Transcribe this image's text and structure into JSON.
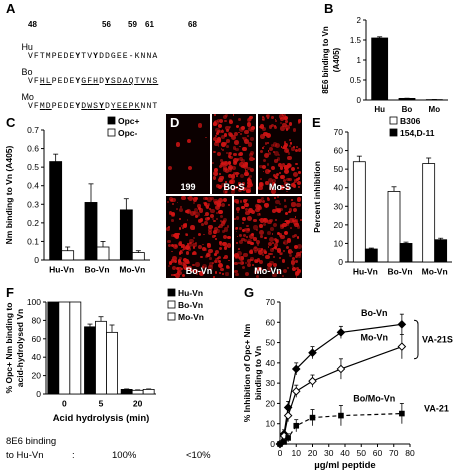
{
  "panels": {
    "A": {
      "label": "A",
      "positions": [
        "48",
        "56",
        "59",
        "61",
        "68"
      ],
      "rows": [
        {
          "species": "Hu",
          "seq": "VFTMPEDEYTVYDDGEE-KNNA",
          "underlined": [],
          "bold": [
            8,
            11
          ]
        },
        {
          "species": "Bo",
          "seq": "VFHLPEDEYGFHDYSDAQTVNS",
          "underlined": [
            2,
            3,
            9,
            10,
            11,
            13,
            14,
            15,
            16,
            17,
            18,
            19,
            20,
            21
          ],
          "bold": [
            8,
            13
          ]
        },
        {
          "species": "Mo",
          "seq": "VFMDPEDEYDWSYDYEEPKNNT",
          "underlined": [
            2,
            3,
            9,
            10,
            11,
            12,
            14,
            15,
            16,
            17,
            18
          ],
          "bold": [
            8,
            12
          ]
        }
      ]
    },
    "B": {
      "label": "B"
    },
    "C": {
      "label": "C"
    },
    "D": {
      "label": "D",
      "images": [
        {
          "label": "199",
          "density": 0.02
        },
        {
          "label": "Bo-S",
          "density": 0.55
        },
        {
          "label": "Mo-S",
          "density": 0.45
        },
        {
          "label": "Bo-Vn",
          "density": 0.5
        },
        {
          "label": "Mo-Vn",
          "density": 0.5
        }
      ]
    },
    "E": {
      "label": "E"
    },
    "F": {
      "label": "F",
      "footer_label_line1": "8E6 binding",
      "footer_label_line2": "to Hu-Vn",
      "footer_colon": ":",
      "footer_values": [
        "100%",
        "<10%"
      ]
    },
    "G": {
      "label": "G"
    }
  },
  "chart_data": [
    {
      "panel": "B",
      "type": "bar",
      "categories": [
        "Hu",
        "Bo",
        "Mo"
      ],
      "values": [
        1.55,
        0.04,
        0.01
      ],
      "errors": [
        0.03,
        0.005,
        0.003
      ],
      "ylabel": "8E6 binding to Vn (A405)",
      "ylim": [
        0,
        2
      ],
      "yticks": [
        "0",
        "0.5",
        "1",
        "1.5",
        "2"
      ],
      "colors": {
        "bar": "#000000"
      }
    },
    {
      "panel": "C",
      "type": "bar",
      "categories": [
        "Hu-Vn",
        "Bo-Vn",
        "Mo-Vn"
      ],
      "series": [
        {
          "name": "Opc+",
          "values": [
            0.53,
            0.31,
            0.27
          ],
          "errors": [
            0.04,
            0.1,
            0.06
          ],
          "fill": "#000000"
        },
        {
          "name": "Opc-",
          "values": [
            0.05,
            0.07,
            0.04
          ],
          "errors": [
            0.02,
            0.03,
            0.01
          ],
          "fill": "#ffffff"
        }
      ],
      "ylabel": "Nm binding to Vn (A405)",
      "ylim": [
        0,
        0.7
      ],
      "yticks": [
        "0",
        "0.1",
        "0.2",
        "0.3",
        "0.4",
        "0.5",
        "0.6",
        "0.7"
      ],
      "legend": "top-right"
    },
    {
      "panel": "E",
      "type": "bar",
      "categories": [
        "Hu-Vn",
        "Bo-Vn",
        "Mo-Vn"
      ],
      "series": [
        {
          "name": "B306",
          "values": [
            54,
            38,
            53
          ],
          "errors": [
            3,
            2.5,
            3
          ],
          "fill": "#ffffff"
        },
        {
          "name": "154,D-11",
          "values": [
            7,
            10,
            12
          ],
          "errors": [
            0.5,
            0.7,
            0.8
          ],
          "fill": "#000000"
        }
      ],
      "ylabel": "Percent inhibition",
      "ylim": [
        0,
        70
      ],
      "yticks": [
        "0",
        "10",
        "20",
        "30",
        "40",
        "50",
        "60",
        "70"
      ],
      "legend": "top-right"
    },
    {
      "panel": "F",
      "type": "bar",
      "categories": [
        "0",
        "5",
        "20"
      ],
      "series": [
        {
          "name": "Hu-Vn",
          "values": [
            100,
            73,
            5
          ],
          "errors": [
            0,
            3,
            0.5
          ],
          "fill": "#000000"
        },
        {
          "name": "Bo-Vn",
          "values": [
            100,
            79,
            4
          ],
          "errors": [
            0,
            5,
            0.5
          ],
          "fill": "#ffffff"
        },
        {
          "name": "Mo-Vn",
          "values": [
            100,
            67,
            5
          ],
          "errors": [
            0,
            8,
            0.5
          ],
          "fill": "#ffffff"
        }
      ],
      "xlabel": "Acid hydrolysis (min)",
      "ylabel": "% Opc+ Nm binding to acid-hydrolysed Vn",
      "ylim": [
        0,
        100
      ],
      "yticks": [
        "0",
        "20",
        "40",
        "60",
        "80",
        "100"
      ],
      "legend": "top-right"
    },
    {
      "panel": "G",
      "type": "line",
      "series": [
        {
          "name": "Bo-Vn",
          "x": [
            0,
            2.5,
            5,
            10,
            20,
            37.5,
            75
          ],
          "y": [
            0,
            5,
            18,
            37,
            45,
            55,
            59
          ],
          "errors": [
            1,
            2,
            3,
            3,
            3,
            3,
            5
          ],
          "marker": "filled-diamond",
          "dashed": false
        },
        {
          "name": "Mo-Vn",
          "x": [
            0,
            2.5,
            5,
            10,
            20,
            37.5,
            75
          ],
          "y": [
            0,
            4,
            14,
            26,
            31,
            37,
            48
          ],
          "errors": [
            1,
            2,
            3,
            3,
            3,
            5,
            6
          ],
          "marker": "open-diamond",
          "dashed": false
        },
        {
          "name": "Bo/Mo-Vn",
          "x": [
            0,
            2.5,
            5,
            10,
            20,
            37.5,
            75
          ],
          "y": [
            0,
            1,
            3,
            9,
            13,
            14,
            15
          ],
          "errors": [
            1,
            1,
            2,
            3,
            4,
            5,
            5
          ],
          "marker": "filled-square",
          "dashed": true
        }
      ],
      "xlabel": "µg/ml peptide",
      "ylabel": "% Inhibition of Opc+ Nm binding to Vn",
      "xlim": [
        0,
        80
      ],
      "ylim": [
        0,
        70
      ],
      "xticks": [
        "0",
        "10",
        "20",
        "30",
        "40",
        "50",
        "60",
        "70",
        "80"
      ],
      "yticks": [
        "0",
        "10",
        "20",
        "30",
        "40",
        "50",
        "60",
        "70"
      ],
      "annotations": [
        "VA-21S",
        "VA-21"
      ]
    }
  ]
}
